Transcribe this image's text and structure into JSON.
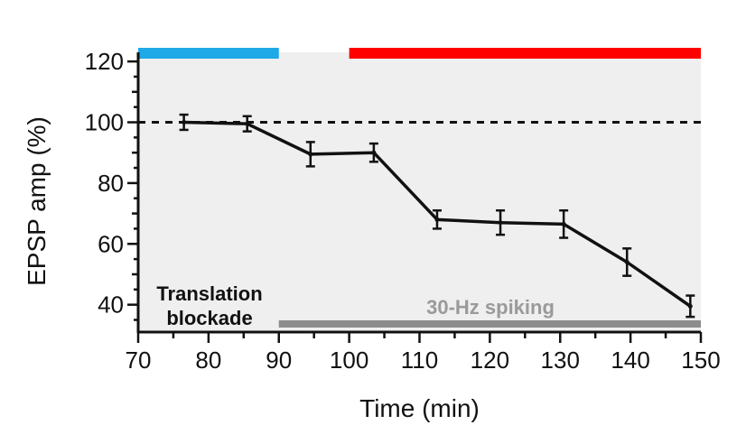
{
  "chart_data": {
    "type": "line",
    "xlabel": "Time (min)",
    "ylabel": "EPSP amp (%)",
    "xlim": [
      70,
      150
    ],
    "ylim": [
      31,
      123
    ],
    "xticks": [
      70,
      80,
      90,
      100,
      110,
      120,
      130,
      140,
      150
    ],
    "yticks": [
      40,
      60,
      80,
      100,
      120
    ],
    "grid": false,
    "reference_line": {
      "y": 100,
      "style": "dashed"
    },
    "series": [
      {
        "x": [
          76.5,
          85.5,
          94.5,
          103.5,
          112.5,
          121.5,
          130.5,
          139.5,
          148.5
        ],
        "y": [
          100,
          99.5,
          89.5,
          90,
          68,
          67,
          66.5,
          54,
          39.5
        ],
        "error": [
          2.5,
          2.5,
          4,
          3,
          3,
          4,
          4.5,
          4.5,
          3.5
        ],
        "color": "#111111"
      }
    ],
    "bars": [
      {
        "x0": 70,
        "x1": 90,
        "position": "top",
        "color": "#1ea9e8"
      },
      {
        "x0": 100,
        "x1": 150,
        "position": "top",
        "color": "#ff0000"
      },
      {
        "x0": 90,
        "x1": 150,
        "position": "bottom",
        "color": "#8c8c8c"
      }
    ],
    "annotations": [
      {
        "lines": [
          "Translation",
          "blockade"
        ],
        "color": "#111111"
      },
      {
        "lines": [
          "30-Hz spiking"
        ],
        "color": "#9a9a9a"
      }
    ],
    "colors": {
      "shade": "#efefef",
      "top_gap": "#efefef"
    }
  }
}
